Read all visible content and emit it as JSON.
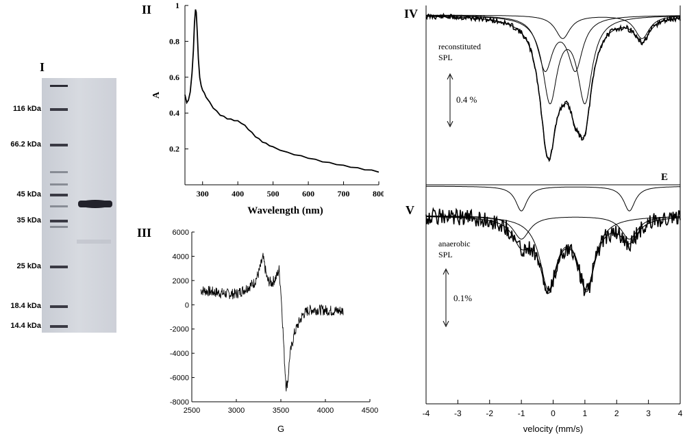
{
  "panel_labels": {
    "I": "I",
    "II": "II",
    "III": "III",
    "IV": "IV",
    "V": "V"
  },
  "chart_data": [
    {
      "panel": "I",
      "type": "gel",
      "markers": [
        "116 kDa",
        "66.2 kDa",
        "45 kDa",
        "35 kDa",
        "25 kDa",
        "18.4 kDa",
        "14.4 kDa"
      ],
      "marker_values_kda": [
        116,
        66.2,
        45,
        35,
        25,
        18.4,
        14.4
      ]
    },
    {
      "panel": "II",
      "type": "line",
      "xlabel": "Wavelength (nm)",
      "ylabel": "A",
      "xlim": [
        250,
        800
      ],
      "ylim": [
        0,
        1
      ],
      "xticks": [
        300,
        400,
        500,
        600,
        700,
        800
      ],
      "yticks": [
        0.2,
        0.4,
        0.6,
        0.8,
        1
      ],
      "ytick_labels": [
        "0.2",
        "0.4",
        "0.6",
        "0.8",
        "1"
      ],
      "x": [
        250,
        255,
        260,
        265,
        270,
        274,
        277,
        280,
        282,
        285,
        288,
        292,
        296,
        300,
        305,
        310,
        320,
        330,
        340,
        350,
        360,
        370,
        380,
        390,
        400,
        410,
        420,
        430,
        440,
        450,
        460,
        470,
        480,
        490,
        500,
        520,
        540,
        560,
        580,
        600,
        620,
        640,
        660,
        680,
        700,
        720,
        740,
        760,
        780,
        800
      ],
      "y": [
        0.5,
        0.46,
        0.47,
        0.52,
        0.62,
        0.75,
        0.9,
        0.98,
        0.96,
        0.85,
        0.7,
        0.6,
        0.55,
        0.53,
        0.51,
        0.49,
        0.46,
        0.43,
        0.41,
        0.39,
        0.38,
        0.37,
        0.365,
        0.36,
        0.355,
        0.345,
        0.33,
        0.31,
        0.29,
        0.27,
        0.255,
        0.24,
        0.23,
        0.22,
        0.21,
        0.195,
        0.18,
        0.17,
        0.16,
        0.15,
        0.14,
        0.13,
        0.122,
        0.115,
        0.107,
        0.1,
        0.093,
        0.086,
        0.08,
        0.073
      ]
    },
    {
      "panel": "III",
      "type": "line",
      "xlabel": "G",
      "ylabel": "",
      "xlim": [
        2500,
        4500
      ],
      "ylim": [
        -8000,
        6000
      ],
      "xticks": [
        2500,
        3000,
        3500,
        4000,
        4500
      ],
      "yticks": [
        -8000,
        -6000,
        -4000,
        -2000,
        0,
        2000,
        4000,
        6000
      ],
      "x": [
        2600,
        2700,
        2800,
        2900,
        3000,
        3100,
        3200,
        3250,
        3300,
        3320,
        3350,
        3400,
        3450,
        3480,
        3500,
        3520,
        3540,
        3560,
        3580,
        3600,
        3650,
        3700,
        3750,
        3800,
        3850,
        3900,
        4000,
        4100,
        4200
      ],
      "y": [
        1200,
        1100,
        1000,
        900,
        900,
        1300,
        1800,
        2600,
        3900,
        3100,
        2000,
        1800,
        2300,
        2900,
        1200,
        -1500,
        -4500,
        -6800,
        -6200,
        -4200,
        -2400,
        -1500,
        -800,
        -500,
        -400,
        -400,
        -450,
        -500,
        -500
      ]
    },
    {
      "panel": "IV",
      "type": "line",
      "xlabel": "",
      "annotation_lines": [
        "reconstituted",
        "SPL"
      ],
      "scale_label": "0.4 %",
      "components": [
        {
          "name": "doublet-main",
          "centers": [
            -0.1,
            1.0
          ],
          "depth": 0.72
        },
        {
          "name": "doublet-2",
          "centers": [
            -0.25,
            0.7
          ],
          "depth": 0.45
        },
        {
          "name": "doublet-3",
          "centers": [
            0.3,
            2.8
          ],
          "depth": 0.2
        }
      ]
    },
    {
      "panel": "E",
      "type": "line",
      "label": "E",
      "components": [
        {
          "name": "doublet-E",
          "centers": [
            -1.0,
            2.4
          ],
          "depth": 0.6
        }
      ]
    },
    {
      "panel": "V",
      "type": "line",
      "xlabel": "velocity (mm/s)",
      "xlim": [
        -4,
        4
      ],
      "xticks": [
        -4,
        -3,
        -2,
        -1,
        0,
        1,
        2,
        3,
        4
      ],
      "annotation_lines": [
        "anaerobic",
        "SPL"
      ],
      "scale_label": "0.1%",
      "components": [
        {
          "name": "doublet-main",
          "centers": [
            -0.15,
            1.05
          ],
          "depth": 0.6
        },
        {
          "name": "doublet-2",
          "centers": [
            -1.0,
            2.4
          ],
          "depth": 0.2
        }
      ]
    }
  ]
}
